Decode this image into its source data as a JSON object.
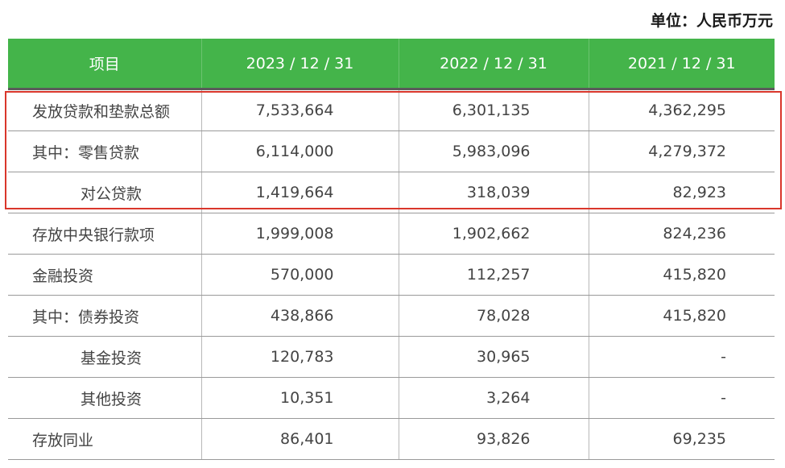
{
  "unit_label": "单位：人民币万元",
  "headers": [
    "项目",
    "2023 / 12 / 31",
    "2022 / 12 / 31",
    "2021 / 12 / 31"
  ],
  "rows": [
    {
      "label": "发放贷款和垫款总额",
      "indent": false,
      "values": [
        "7,533,664",
        "6,301,135",
        "4,362,295"
      ]
    },
    {
      "label": "其中：零售贷款",
      "indent": false,
      "values": [
        "6,114,000",
        "5,983,096",
        "4,279,372"
      ]
    },
    {
      "label": "对公贷款",
      "indent": true,
      "values": [
        "1,419,664",
        "318,039",
        "82,923"
      ]
    },
    {
      "label": "存放中央银行款项",
      "indent": false,
      "values": [
        "1,999,008",
        "1,902,662",
        "824,236"
      ]
    },
    {
      "label": "金融投资",
      "indent": false,
      "values": [
        "570,000",
        "112,257",
        "415,820"
      ]
    },
    {
      "label": "其中：债券投资",
      "indent": false,
      "values": [
        "438,866",
        "78,028",
        "415,820"
      ]
    },
    {
      "label": "基金投资",
      "indent": true,
      "values": [
        "120,783",
        "30,965",
        "-"
      ]
    },
    {
      "label": "其他投资",
      "indent": true,
      "values": [
        "10,351",
        "3,264",
        "-"
      ]
    },
    {
      "label": "存放同业",
      "indent": false,
      "values": [
        "86,401",
        "93,826",
        "69,235"
      ]
    }
  ],
  "colors": {
    "header_bg": "#44b44a",
    "highlight_border": "#d9362b"
  }
}
